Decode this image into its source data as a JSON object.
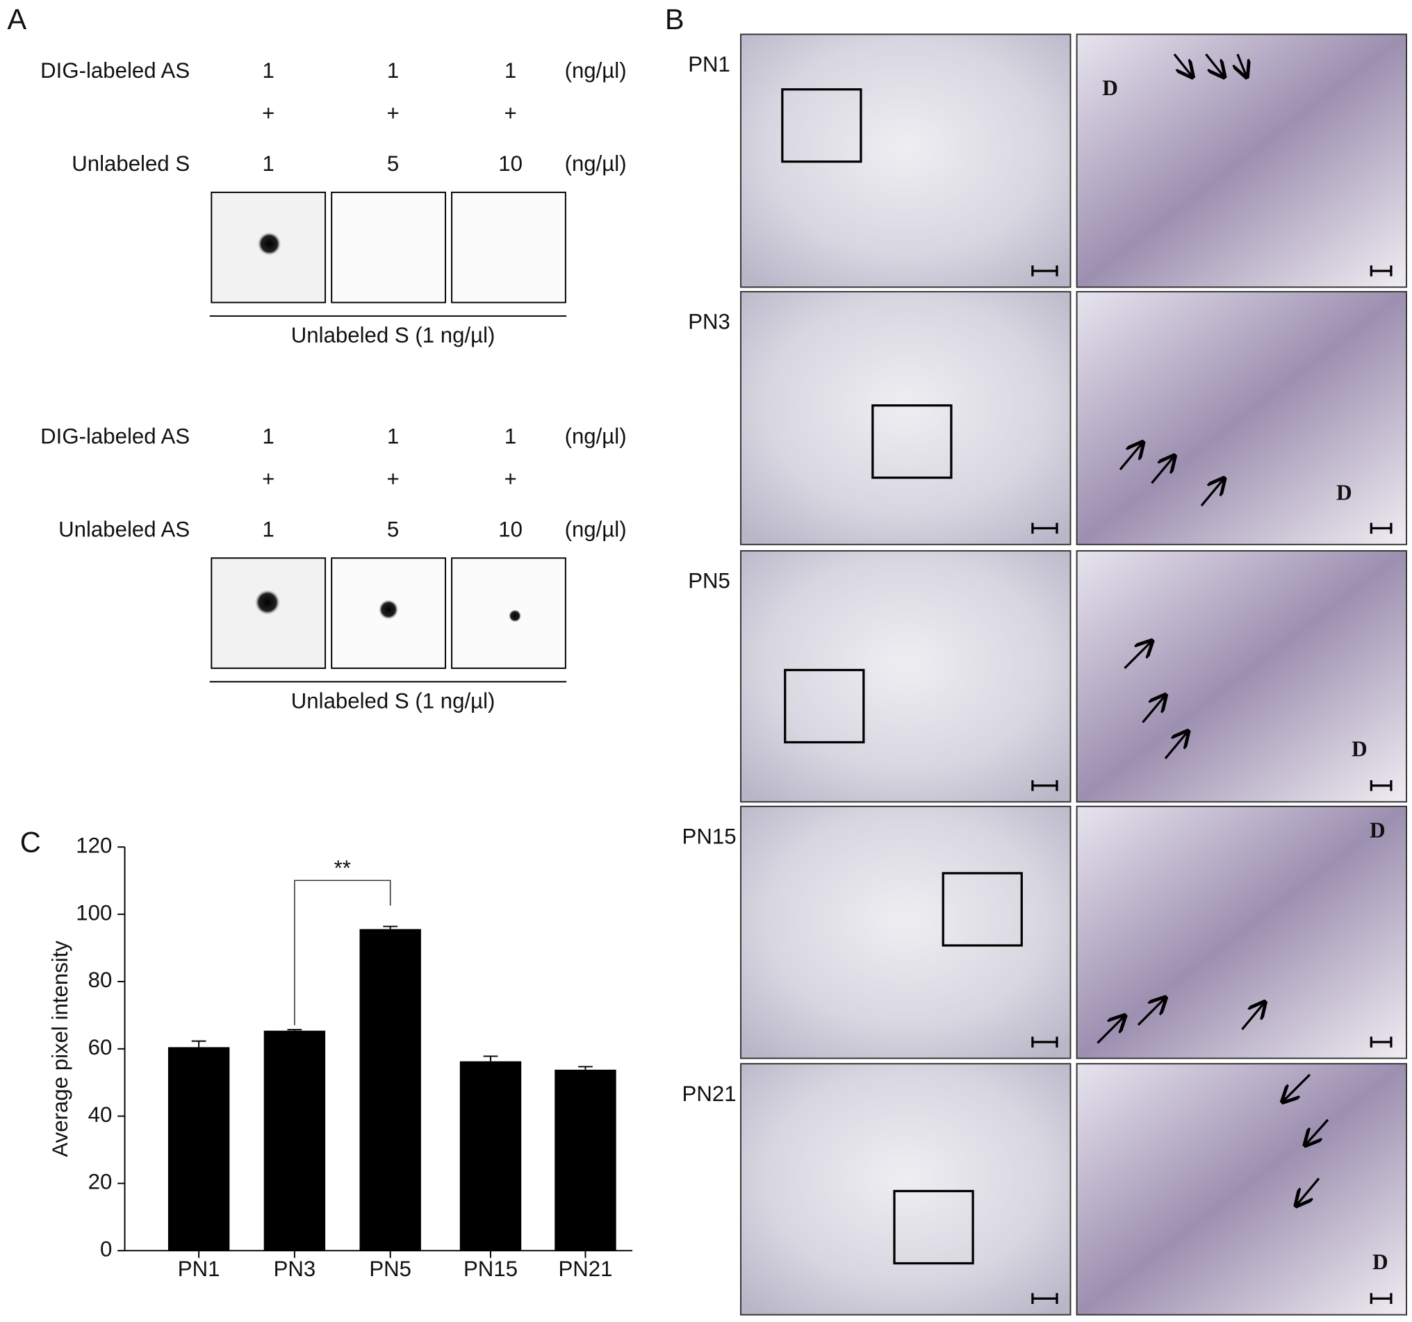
{
  "panel_a": {
    "label": "A",
    "blocks": [
      {
        "rows": [
          {
            "label": "DIG-labeled AS",
            "values": [
              1,
              1,
              1
            ],
            "unit": "(ng/µl)"
          },
          {
            "values": [
              "+",
              "+",
              "+"
            ]
          },
          {
            "label": "Unlabeled S",
            "values": [
              1,
              5,
              10
            ],
            "unit": "(ng/µl)"
          }
        ],
        "caption": "Unlabeled S (1 ng/µl)"
      },
      {
        "rows": [
          {
            "label": "DIG-labeled AS",
            "values": [
              1,
              1,
              1
            ],
            "unit": "(ng/µl)"
          },
          {
            "values": [
              "+",
              "+",
              "+"
            ]
          },
          {
            "label": "Unlabeled AS",
            "values": [
              1,
              5,
              10
            ],
            "unit": "(ng/µl)"
          }
        ],
        "caption": "Unlabeled S (1 ng/µl)"
      }
    ]
  },
  "panel_b": {
    "label": "B",
    "rows": [
      "PN1",
      "PN3",
      "PN5",
      "PN15",
      "PN21"
    ],
    "dentin_label": "D"
  },
  "chart_data": {
    "type": "bar",
    "label": "C",
    "y_label": "Average pixel intensity",
    "categories": [
      "PN1",
      "PN3",
      "PN5",
      "PN15",
      "PN21"
    ],
    "values": [
      60.5,
      65.4,
      95.6,
      56.3,
      53.8
    ],
    "errors": [
      1.8,
      0.3,
      0.8,
      1.5,
      0.9
    ],
    "color": "#000000",
    "ylim": [
      0,
      120
    ],
    "yticks": [
      0,
      20,
      40,
      60,
      80,
      100,
      120
    ],
    "significance": "**"
  }
}
